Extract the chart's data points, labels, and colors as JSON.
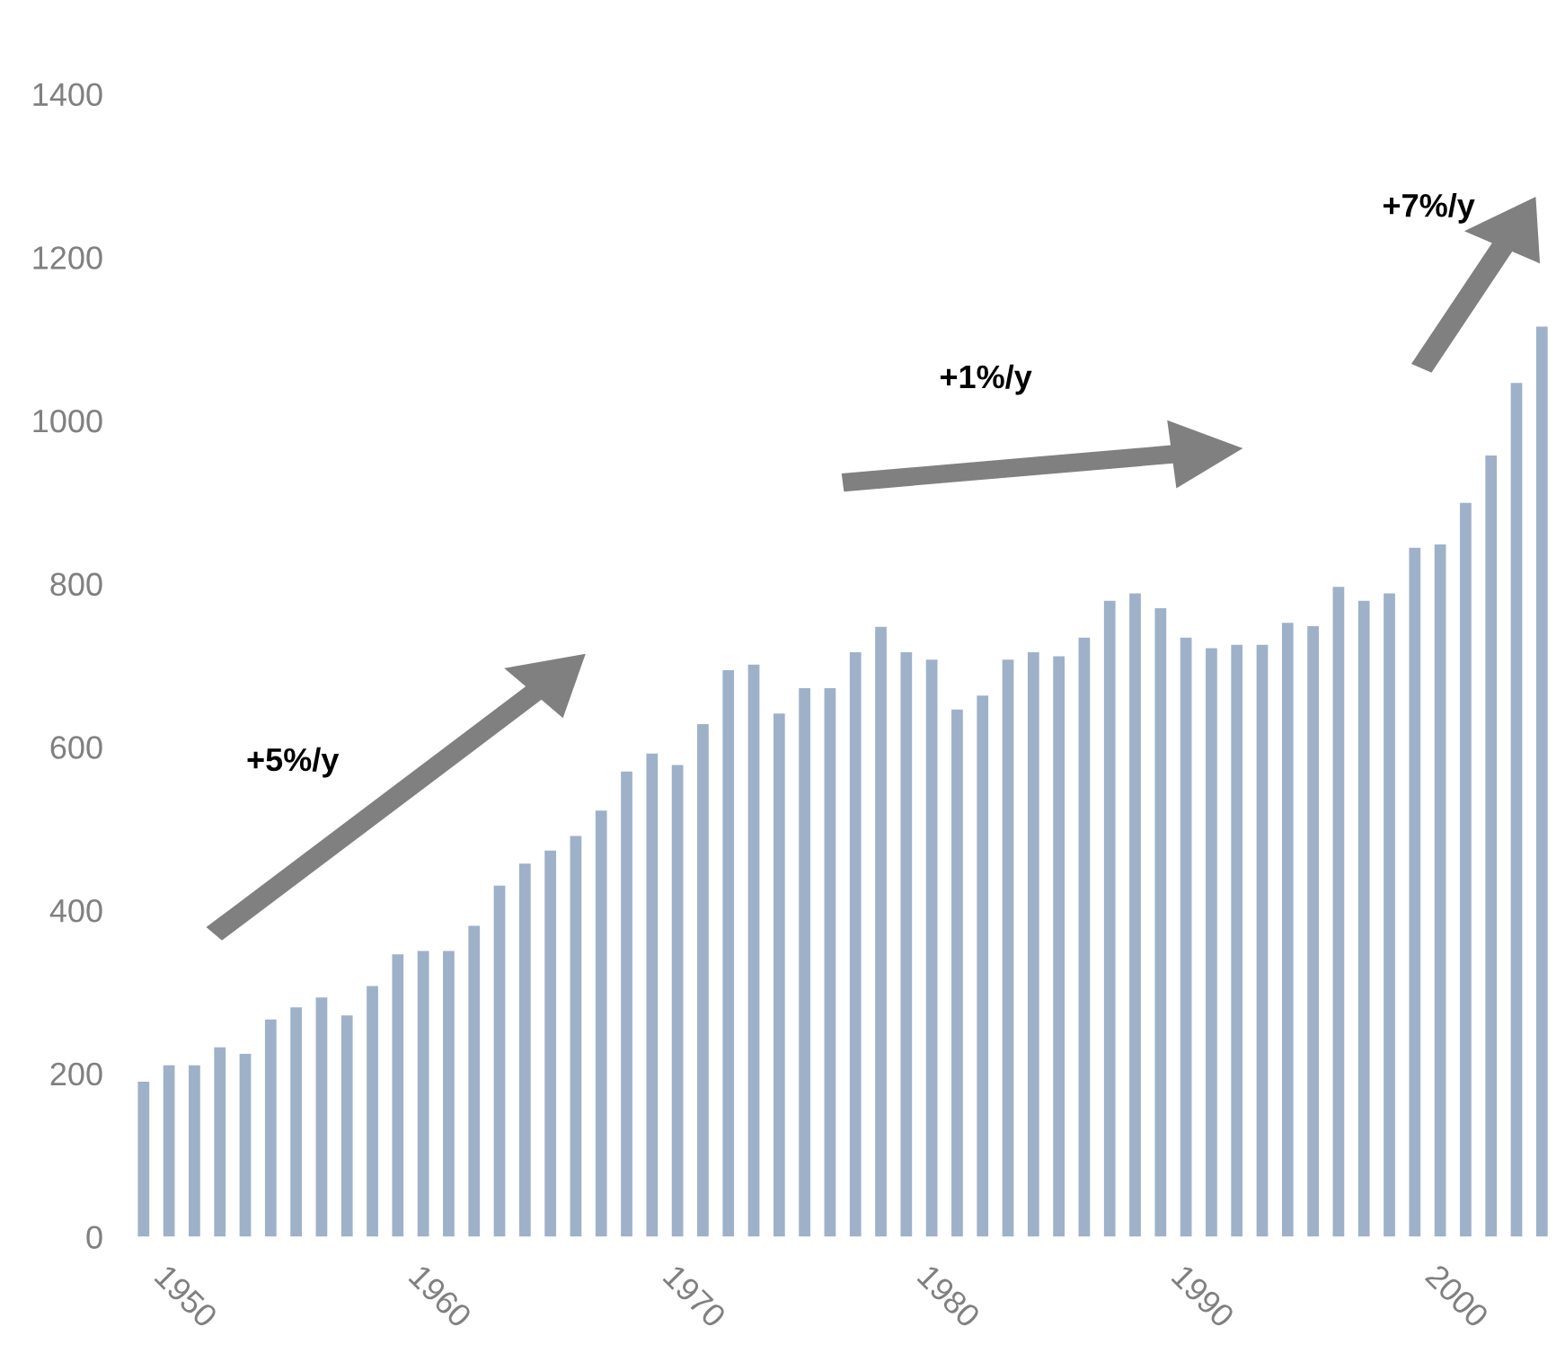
{
  "chart_data": {
    "type": "bar",
    "categories": [
      null,
      "1950",
      null,
      null,
      null,
      null,
      null,
      null,
      null,
      null,
      null,
      "1960",
      null,
      null,
      null,
      null,
      null,
      null,
      null,
      null,
      null,
      "1970",
      null,
      null,
      null,
      null,
      null,
      null,
      null,
      null,
      null,
      "1980",
      null,
      null,
      null,
      null,
      null,
      null,
      null,
      null,
      null,
      "1990",
      null,
      null,
      null,
      null,
      null,
      null,
      null,
      null,
      null,
      "2000",
      null,
      null,
      null,
      null
    ],
    "values": [
      190,
      210,
      210,
      232,
      224,
      266,
      281,
      293,
      271,
      307,
      346,
      350,
      350,
      381,
      430,
      457,
      473,
      491,
      522,
      570,
      592,
      578,
      628,
      694,
      701,
      641,
      672,
      672,
      716,
      747,
      716,
      707,
      646,
      663,
      707,
      716,
      711,
      734,
      779,
      788,
      770,
      734,
      721,
      725,
      725,
      752,
      748,
      796,
      779,
      788,
      844,
      848,
      899,
      957,
      1046,
      1115
    ],
    "color": "#9eb1c9",
    "ylim": [
      0,
      1400
    ],
    "yticks": [
      0,
      200,
      400,
      600,
      800,
      1000,
      1200,
      1400
    ],
    "annotations": [
      "+5%/y",
      "+1%/y",
      "+7%/y"
    ]
  }
}
